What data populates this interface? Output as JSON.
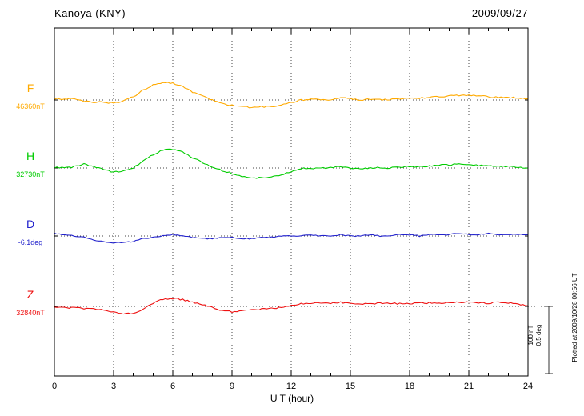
{
  "header": {
    "title": "Kanoya (KNY)",
    "date": "2009/09/27"
  },
  "scale_bar": {
    "line1": "100 nT",
    "line2": "0.5 deg"
  },
  "footnote": "Plotted at 2009/10/28 00:56 UT",
  "chart_data": {
    "type": "line",
    "title": "Kanoya (KNY)",
    "date": "2009/09/27",
    "xlabel": "U T (hour)",
    "xlim": [
      0,
      24
    ],
    "xticks": [
      0,
      3,
      6,
      9,
      12,
      15,
      18,
      21,
      24
    ],
    "x_step_hours": 0.5,
    "grid": "dotted vertical lines every 3 hours; dotted horizontal baseline per component",
    "legend_position": "left-margin component labels",
    "scale": {
      "nT_per_division": 100,
      "deg_per_division": 0.5
    },
    "values_are": "deviation from the baseline value printed at left, in native units (nT for F,H,Z; deg for D), sampled every 0.5 h from 00 to 24 UT",
    "series": [
      {
        "name": "F",
        "baseline_label": "46360nT",
        "units": "nT",
        "color": "#ffaa00",
        "values": [
          2,
          1,
          2,
          -2,
          -4,
          -3,
          -5,
          -2,
          5,
          15,
          22,
          26,
          25,
          20,
          12,
          6,
          0,
          -5,
          -8,
          -10,
          -11,
          -10,
          -10,
          -8,
          -4,
          0,
          1,
          0,
          1,
          3,
          2,
          0,
          1,
          0,
          1,
          2,
          2,
          3,
          4,
          5,
          6,
          7,
          7,
          6,
          5,
          4,
          4,
          3,
          2
        ]
      },
      {
        "name": "H",
        "baseline_label": "32730nT",
        "units": "nT",
        "color": "#00cc00",
        "values": [
          1,
          0,
          2,
          6,
          2,
          -2,
          -6,
          -5,
          0,
          10,
          20,
          27,
          28,
          24,
          15,
          8,
          2,
          -4,
          -8,
          -12,
          -14,
          -15,
          -14,
          -10,
          -5,
          -1,
          0,
          -1,
          1,
          2,
          0,
          -1,
          0,
          1,
          0,
          1,
          2,
          2,
          3,
          4,
          5,
          6,
          6,
          4,
          3,
          2,
          2,
          1,
          0
        ]
      },
      {
        "name": "D",
        "baseline_label": "-6.1deg",
        "units": "deg",
        "color": "#2222cc",
        "values": [
          0.02,
          0.01,
          0,
          -0.01,
          -0.03,
          -0.04,
          -0.05,
          -0.05,
          -0.04,
          -0.02,
          -0.01,
          0,
          0.01,
          0,
          -0.01,
          -0.02,
          -0.02,
          -0.01,
          -0.01,
          -0.02,
          -0.02,
          -0.01,
          -0.01,
          0,
          0,
          0,
          0.01,
          0,
          0,
          0.01,
          0,
          0,
          0.01,
          0,
          0,
          0.01,
          0.01,
          0,
          0.01,
          0.01,
          0.01,
          0.02,
          0.01,
          0.01,
          0.02,
          0.01,
          0.01,
          0.01,
          0.01
        ]
      },
      {
        "name": "Z",
        "baseline_label": "32840nT",
        "units": "nT",
        "color": "#ee1111",
        "values": [
          -1,
          -2,
          -2,
          -3,
          -3,
          -5,
          -9,
          -11,
          -10,
          -5,
          5,
          11,
          12,
          10,
          6,
          3,
          -2,
          -6,
          -8,
          -7,
          -5,
          -4,
          -3,
          -2,
          2,
          4,
          5,
          5,
          5,
          6,
          5,
          4,
          4,
          5,
          5,
          4,
          4,
          5,
          5,
          5,
          6,
          6,
          6,
          5,
          5,
          6,
          5,
          3,
          1
        ]
      }
    ]
  }
}
